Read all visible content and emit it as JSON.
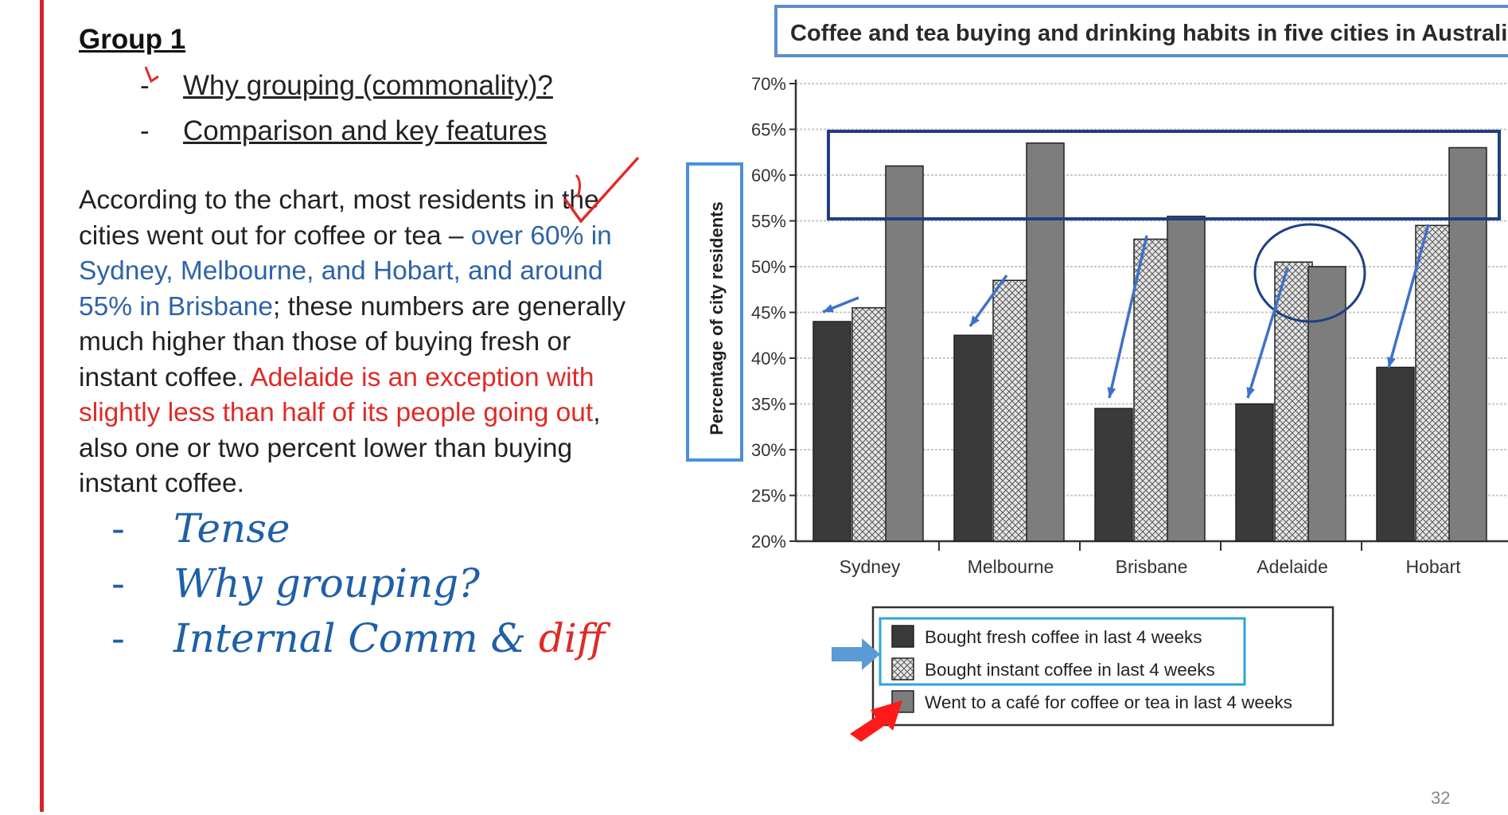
{
  "slide": {
    "group_title": "Group 1",
    "questions": [
      "Why grouping (commonality)?",
      "Comparison and key features"
    ],
    "dash": "-",
    "paragraph": {
      "p1": "According to the chart, most residents in the cities went out for coffee or tea – ",
      "p2_blue": "over 60% in Sydney, Melbourne, and Hobart, and around 55% in Brisbane",
      "p3": "; these numbers are generally much higher than those of buying fresh or instant coffee. ",
      "p4_red": "Adelaide is an exception with slightly less than half of its people going out",
      "p5": ", also one or two percent lower than buying instant coffee."
    },
    "handwritten": {
      "item1": "Tense",
      "item2": "Why grouping?",
      "item3_a": "Internal Comm & ",
      "item3_b": "diff"
    },
    "page_number": "32"
  },
  "chart_data": {
    "type": "bar",
    "title": "Coffee and tea buying and drinking habits in five cities in Australia",
    "ylabel": "Percentage of city residents",
    "xlabel": "",
    "ylim": [
      20,
      70
    ],
    "yticks": [
      "20%",
      "25%",
      "30%",
      "35%",
      "40%",
      "45%",
      "50%",
      "55%",
      "60%",
      "65%",
      "70%"
    ],
    "categories": [
      "Sydney",
      "Melbourne",
      "Brisbane",
      "Adelaide",
      "Hobart"
    ],
    "series": [
      {
        "name": "Bought fresh coffee in last 4 weeks",
        "values": [
          44,
          42.5,
          34.5,
          35,
          39
        ],
        "color": "#3a3a3a",
        "pattern": "solid"
      },
      {
        "name": "Bought instant coffee in last 4 weeks",
        "values": [
          45.5,
          48.5,
          53,
          50.5,
          54.5
        ],
        "color": "#d8d8d8",
        "pattern": "crosshatch"
      },
      {
        "name": "Went to a café for coffee or tea in last 4 weeks",
        "values": [
          61,
          63.5,
          55.5,
          50,
          63
        ],
        "color": "#7a7a7a",
        "pattern": "solid"
      }
    ],
    "legend_position": "bottom",
    "grid": true
  },
  "colors": {
    "slide_red": "#d9232e",
    "annotation_blue": "#2e63a8",
    "annotation_red": "#e02a26",
    "highlight_navy": "#1e3f86",
    "highlight_light_blue": "#5b8fd0"
  }
}
